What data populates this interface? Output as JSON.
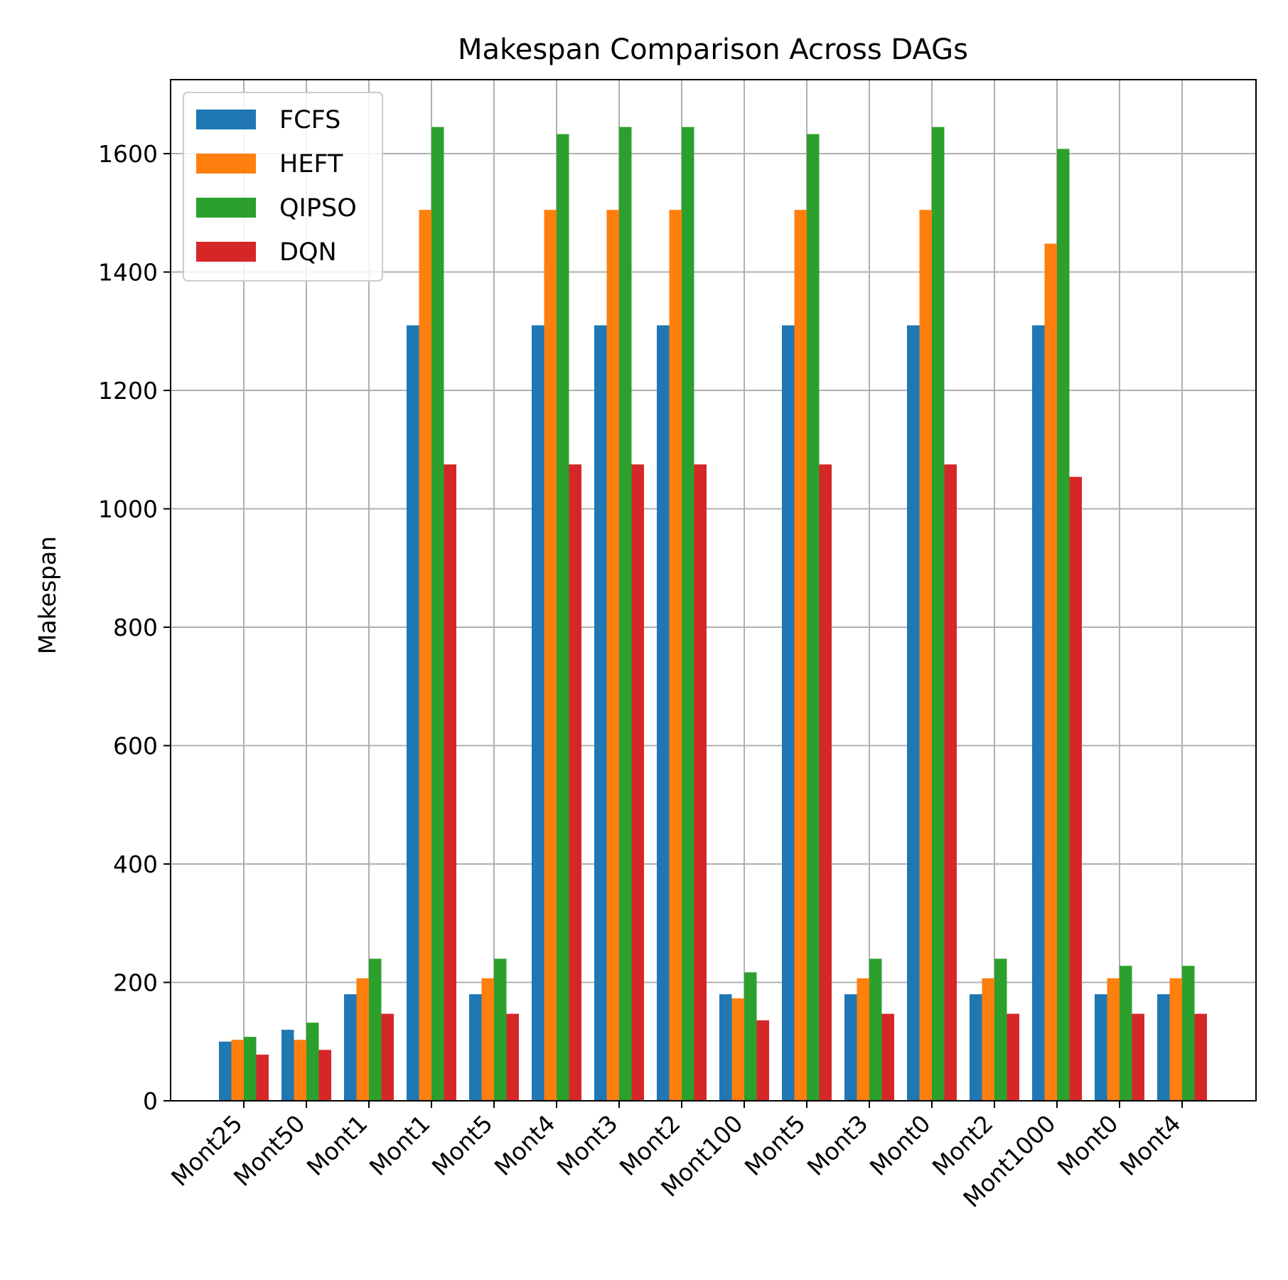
{
  "chart_data": {
    "type": "bar",
    "title": "Makespan Comparison Across DAGs",
    "xlabel": "",
    "ylabel": "Makespan",
    "ylim": [
      0,
      1725
    ],
    "yticks": [
      0,
      200,
      400,
      600,
      800,
      1000,
      1200,
      1400,
      1600
    ],
    "grid": true,
    "legend_position": "top-left",
    "categories": [
      "Mont25",
      "Mont50",
      "Mont1",
      "Mont1",
      "Mont5",
      "Mont4",
      "Mont3",
      "Mont2",
      "Mont100",
      "Mont5",
      "Mont3",
      "Mont0",
      "Mont2",
      "Mont1000",
      "Mont0",
      "Mont4"
    ],
    "series": [
      {
        "name": "FCFS",
        "color": "#1f77b4",
        "values": [
          100,
          120,
          180,
          1310,
          180,
          1310,
          1310,
          1310,
          180,
          1310,
          180,
          1310,
          180,
          1310,
          180,
          180
        ]
      },
      {
        "name": "HEFT",
        "color": "#ff7f0e",
        "values": [
          103,
          103,
          207,
          1505,
          207,
          1505,
          1505,
          1505,
          173,
          1505,
          207,
          1505,
          207,
          1448,
          207,
          207
        ]
      },
      {
        "name": "QIPSO",
        "color": "#2ca02c",
        "values": [
          108,
          132,
          240,
          1645,
          240,
          1633,
          1645,
          1645,
          217,
          1633,
          240,
          1645,
          240,
          1608,
          228,
          228
        ]
      },
      {
        "name": "DQN",
        "color": "#d62728",
        "values": [
          78,
          86,
          147,
          1075,
          147,
          1075,
          1075,
          1075,
          136,
          1075,
          147,
          1075,
          147,
          1054,
          147,
          147
        ]
      }
    ]
  }
}
